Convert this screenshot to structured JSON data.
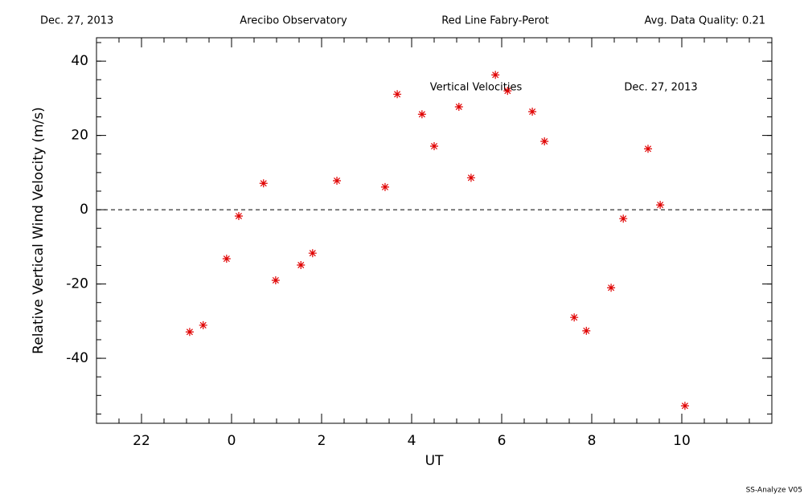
{
  "header": {
    "date": "Dec. 27, 2013",
    "site": "Arecibo Observatory",
    "instrument": "Red Line Fabry-Perot",
    "quality": "Avg. Data Quality: 0.21"
  },
  "footer": "SS-Analyze V05",
  "chart_data": {
    "type": "scatter",
    "annotations": [
      "Vertical Velocities",
      "Dec. 27, 2013"
    ],
    "x_label": "UT",
    "y_label": "Relative Vertical Wind Velocity (m/s)",
    "color": "#e00000",
    "reference_line": 0,
    "xlim": [
      -3,
      12
    ],
    "ylim": [
      -57.5,
      46.3
    ],
    "xticks": [
      {
        "value": -2,
        "label": "22"
      },
      0,
      2,
      4,
      6,
      8,
      10
    ],
    "yticks": [
      -40,
      -20,
      0,
      20,
      40
    ],
    "x": [
      -0.93,
      -0.63,
      -0.11,
      0.16,
      0.71,
      0.98,
      1.54,
      1.8,
      2.34,
      3.41,
      3.68,
      4.23,
      4.5,
      5.05,
      5.32,
      5.86,
      6.13,
      6.68,
      6.95,
      7.61,
      7.88,
      8.43,
      8.7,
      9.25,
      9.52,
      10.07
    ],
    "values": [
      -32.9,
      -31.1,
      -13.2,
      -1.7,
      7.1,
      -19.0,
      -14.9,
      -11.7,
      7.8,
      6.1,
      31.1,
      25.7,
      17.1,
      27.7,
      8.6,
      36.3,
      32.0,
      26.4,
      18.4,
      -29.0,
      -32.6,
      -21.0,
      -2.4,
      16.4,
      1.3,
      -52.8
    ]
  }
}
